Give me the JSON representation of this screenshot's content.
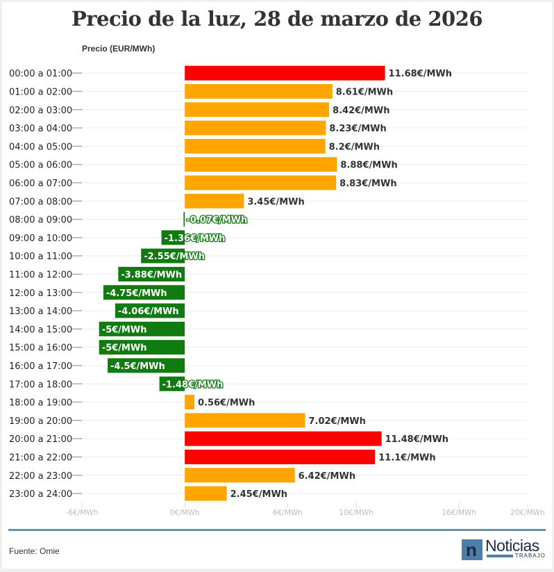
{
  "chart_data": {
    "type": "bar",
    "orientation": "horizontal",
    "title": "Precio de la luz, 28 de marzo de 2026",
    "ylabel": "Precio (EUR/MWh)",
    "xlabel": "",
    "xlim": [
      -6,
      20
    ],
    "x_ticks": [
      -6,
      0,
      6,
      10,
      16,
      20
    ],
    "x_tick_labels": [
      "-6€/MWh",
      "0€/MWh",
      "6€/MWh",
      "10€/MWh",
      "16€/MWh",
      "20€/MWh"
    ],
    "grid": true,
    "value_suffix": "€/MWh",
    "categories": [
      "00:00 a 01:00",
      "01:00 a 02:00",
      "02:00 a 03:00",
      "03:00 a 04:00",
      "04:00 a 05:00",
      "05:00 a 06:00",
      "06:00 a 07:00",
      "07:00 a 08:00",
      "08:00 a 09:00",
      "09:00 a 10:00",
      "10:00 a 11:00",
      "11:00 a 12:00",
      "12:00 a 13:00",
      "13:00 a 14:00",
      "14:00 a 15:00",
      "15:00 a 16:00",
      "16:00 a 17:00",
      "17:00 a 18:00",
      "18:00 a 19:00",
      "19:00 a 20:00",
      "20:00 a 21:00",
      "21:00 a 22:00",
      "22:00 a 23:00",
      "23:00 a 24:00"
    ],
    "values": [
      11.68,
      8.61,
      8.42,
      8.23,
      8.2,
      8.88,
      8.83,
      3.45,
      -0.07,
      -1.36,
      -2.55,
      -3.88,
      -4.75,
      -4.06,
      -5,
      -5,
      -4.5,
      -1.48,
      0.56,
      7.02,
      11.48,
      11.1,
      6.42,
      2.45
    ],
    "value_labels": [
      "11.68€/MWh",
      "8.61€/MWh",
      "8.42€/MWh",
      "8.23€/MWh",
      "8.2€/MWh",
      "8.88€/MWh",
      "8.83€/MWh",
      "3.45€/MWh",
      "-0.07€/MWh",
      "-1.36€/MWh",
      "-2.55€/MWh",
      "-3.88€/MWh",
      "-4.75€/MWh",
      "-4.06€/MWh",
      "-5€/MWh",
      "-5€/MWh",
      "-4.5€/MWh",
      "-1.48€/MWh",
      "0.56€/MWh",
      "7.02€/MWh",
      "11.48€/MWh",
      "11.1€/MWh",
      "6.42€/MWh",
      "2.45€/MWh"
    ],
    "color_levels": [
      "high",
      "mid",
      "mid",
      "mid",
      "mid",
      "mid",
      "mid",
      "mid",
      "negative",
      "negative",
      "negative",
      "negative",
      "negative",
      "negative",
      "negative",
      "negative",
      "negative",
      "negative",
      "mid",
      "mid",
      "high",
      "high",
      "mid",
      "mid"
    ]
  },
  "colors": {
    "high": "#ff0000",
    "mid": "#ffa500",
    "negative": "#117a11"
  },
  "footer": {
    "source": "Fuente: Omie",
    "logo_name": "Noticias",
    "logo_sub": "TRABAJO",
    "logo_letter": "n"
  }
}
